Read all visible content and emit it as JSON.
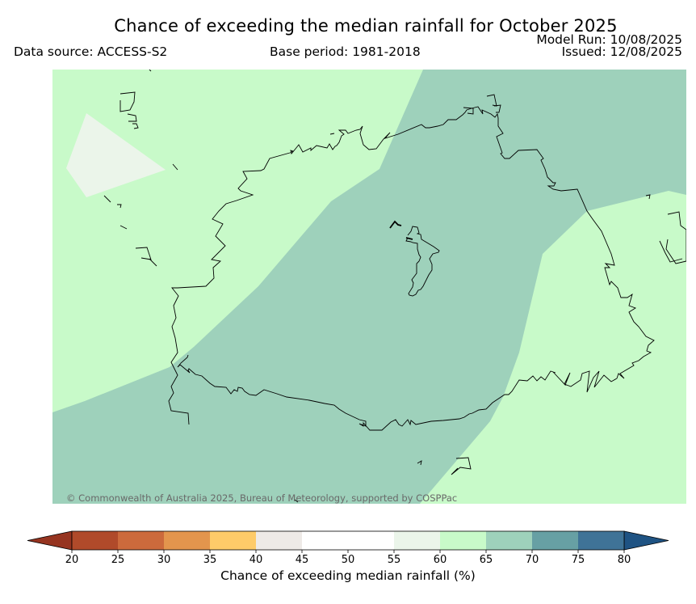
{
  "header": {
    "title": "Chance of exceeding the median rainfall for October 2025",
    "data_source": "Data source: ACCESS-S2",
    "base_period": "Base period: 1981-2018",
    "model_run": "Model Run: 10/08/2025",
    "issued": "Issued: 12/08/2025"
  },
  "map": {
    "copyright": "© Commonwealth of Australia 2025, Bureau of Meteorology, supported by COSPPac",
    "zone_colors": {
      "55-60": "#ebf5ea",
      "60-65": "#c8fac9",
      "65-70": "#9ed1bb"
    }
  },
  "colorbar": {
    "label": "Chance of exceeding median rainfall (%)",
    "ticks": [
      "20",
      "25",
      "30",
      "35",
      "40",
      "45",
      "50",
      "55",
      "60",
      "65",
      "70",
      "75",
      "80"
    ],
    "colors": [
      "#b04a2a",
      "#cc6a3c",
      "#e3954d",
      "#fecb69",
      "#eeeae7",
      "#ffffff",
      "#ffffff",
      "#ebf5ea",
      "#c8fac9",
      "#9ed1bb",
      "#67a0a4",
      "#3f7397"
    ],
    "extend_low_color": "#963420",
    "extend_high_color": "#1f5383"
  }
}
